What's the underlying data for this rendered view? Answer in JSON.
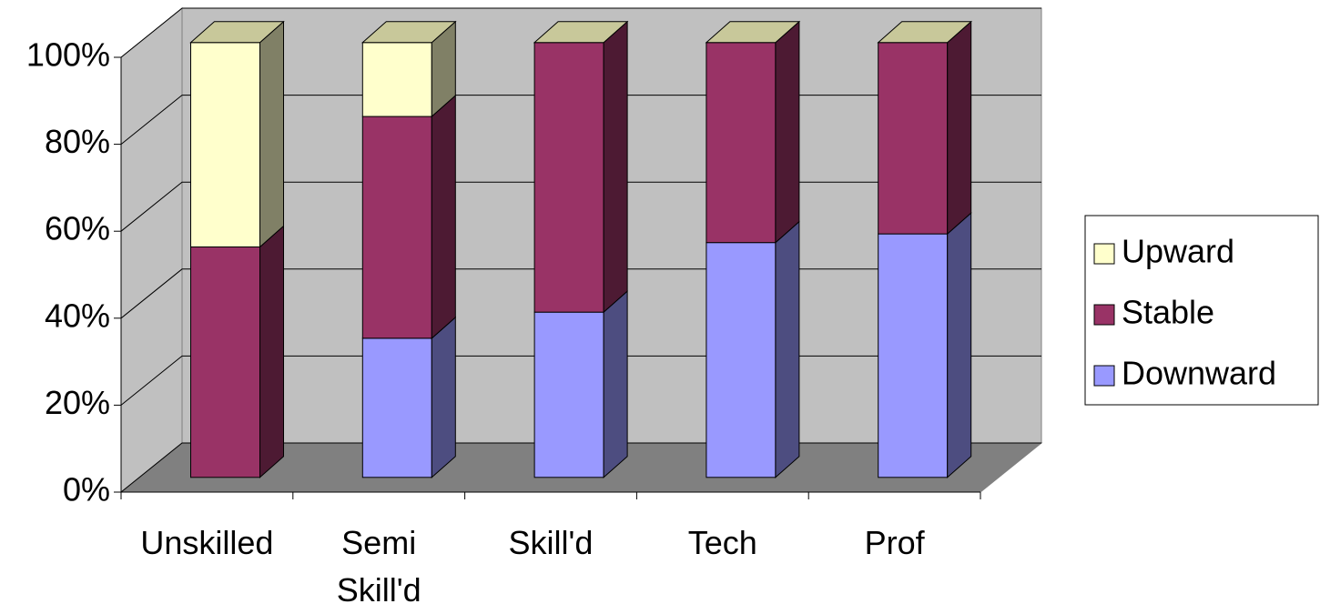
{
  "chart_data": {
    "type": "bar",
    "stacked": true,
    "categories": [
      "Unskilled",
      "Semi Skill'd",
      "Skill'd",
      "Tech",
      "Prof"
    ],
    "series": [
      {
        "name": "Downward",
        "color": "#9999ff",
        "values": [
          0,
          32,
          38,
          54,
          56
        ]
      },
      {
        "name": "Stable",
        "color": "#993366",
        "values": [
          53,
          51,
          62,
          46,
          44
        ]
      },
      {
        "name": "Upward",
        "color": "#ffffcc",
        "values": [
          47,
          17,
          0,
          0,
          0
        ]
      }
    ],
    "ylim": [
      0,
      100
    ],
    "yticks": [
      {
        "value": 0,
        "label": "0%"
      },
      {
        "value": 20,
        "label": "20%"
      },
      {
        "value": 40,
        "label": "40%"
      },
      {
        "value": 60,
        "label": "60%"
      },
      {
        "value": 80,
        "label": "80%"
      },
      {
        "value": 100,
        "label": "100%"
      }
    ],
    "grid": true,
    "legend": "right"
  }
}
